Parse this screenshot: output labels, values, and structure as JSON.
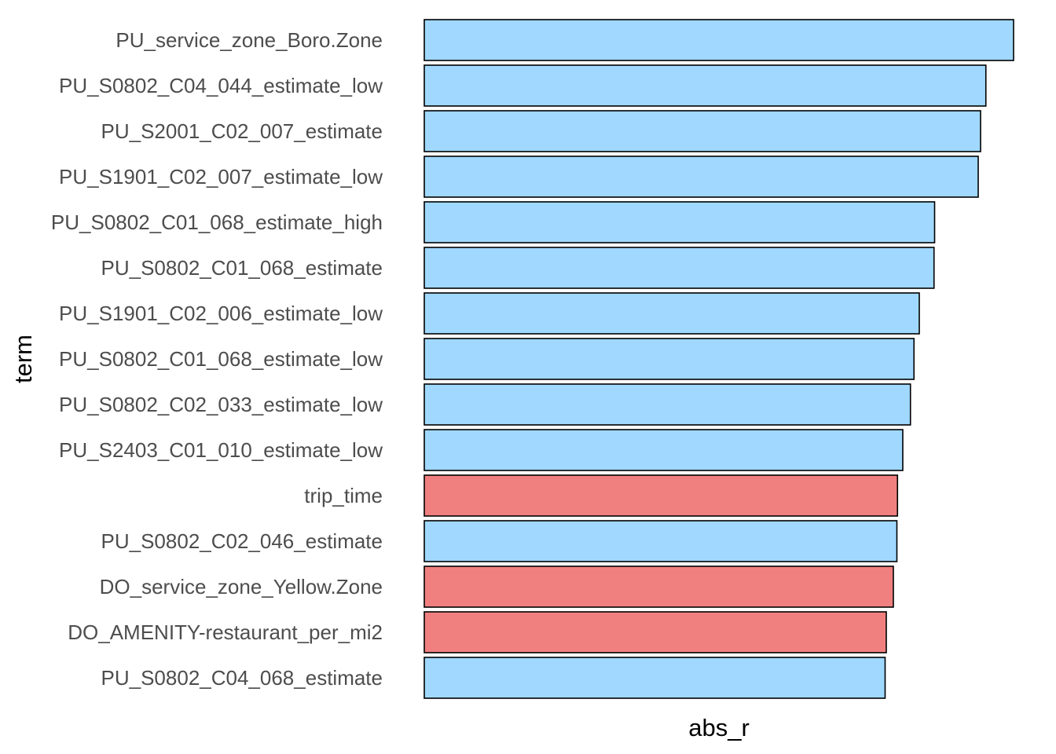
{
  "chart_data": {
    "type": "bar",
    "orientation": "horizontal",
    "xlabel": "abs_r",
    "ylabel": "term",
    "grid": false,
    "legend": "none",
    "categories": [
      "PU_service_zone_Boro.Zone",
      "PU_S0802_C04_044_estimate_low",
      "PU_S2001_C02_007_estimate",
      "PU_S1901_C02_007_estimate_low",
      "PU_S0802_C01_068_estimate_high",
      "PU_S0802_C01_068_estimate",
      "PU_S1901_C02_006_estimate_low",
      "PU_S0802_C01_068_estimate_low",
      "PU_S0802_C02_033_estimate_low",
      "PU_S2403_C01_010_estimate_low",
      "trip_time",
      "PU_S0802_C02_046_estimate",
      "DO_service_zone_Yellow.Zone",
      "DO_AMENITY-restaurant_per_mi2",
      "PU_S0802_C04_068_estimate"
    ],
    "values": [
      1.0,
      0.953,
      0.944,
      0.94,
      0.866,
      0.865,
      0.84,
      0.831,
      0.825,
      0.812,
      0.803,
      0.802,
      0.796,
      0.784,
      0.782
    ],
    "signs": [
      "positive",
      "positive",
      "positive",
      "positive",
      "positive",
      "positive",
      "positive",
      "positive",
      "positive",
      "positive",
      "negative",
      "positive",
      "negative",
      "negative",
      "positive"
    ],
    "colors": {
      "positive": "#a0d8ff",
      "negative": "#f08080"
    }
  }
}
